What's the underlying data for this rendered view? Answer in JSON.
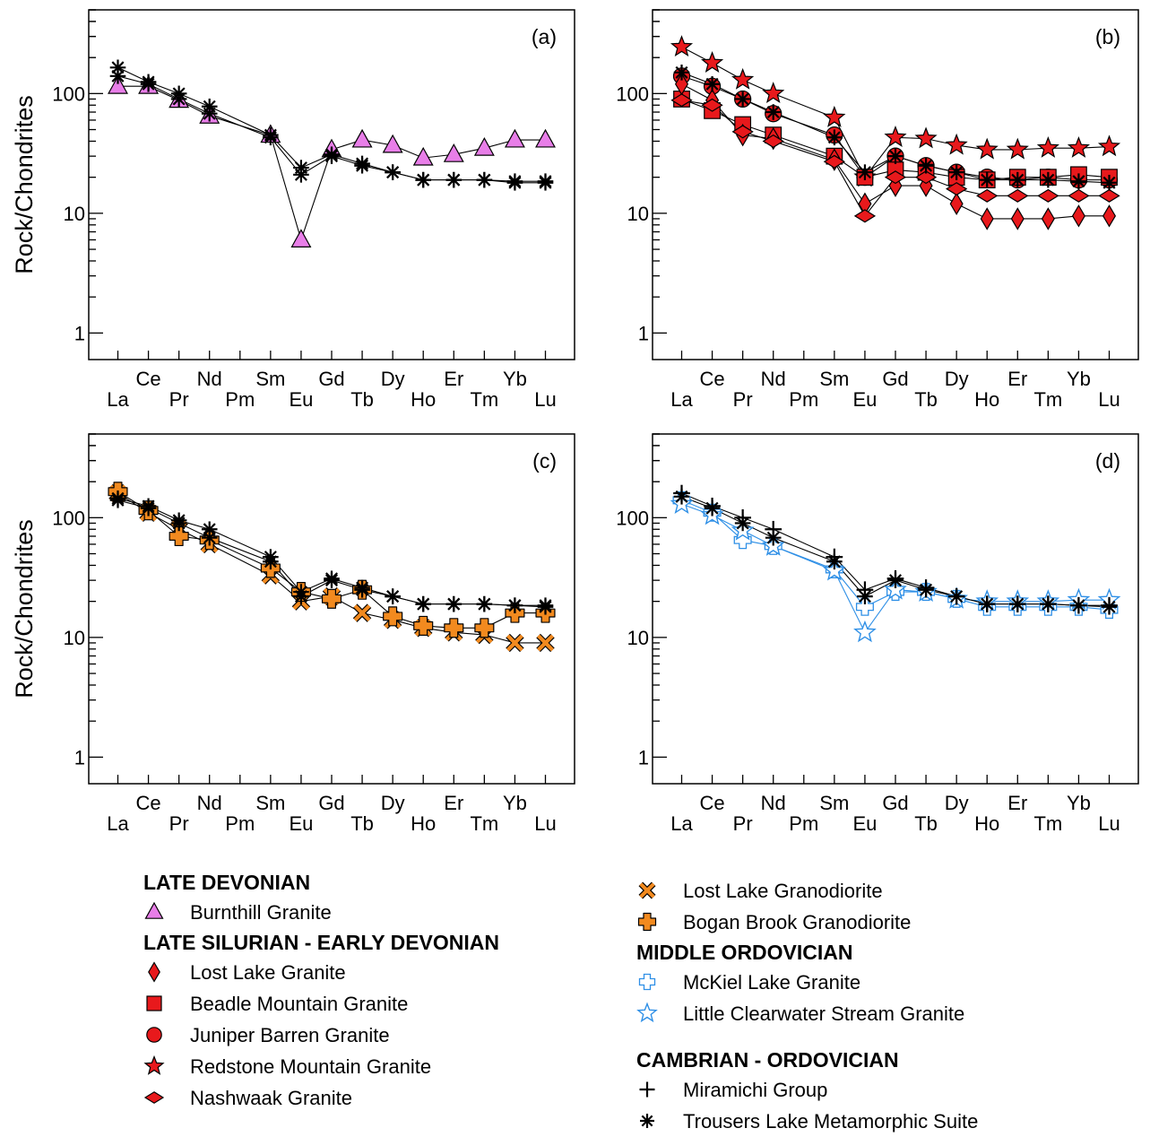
{
  "chart_data": [
    {
      "type": "line",
      "panel": "a",
      "annotation": "(a)",
      "ylabel": "Rock/Chondrites",
      "yscale": "log",
      "ylim": [
        0.6,
        500
      ],
      "yticks": [
        "1",
        "10",
        "100"
      ],
      "categories": [
        "La",
        "Ce",
        "Pr",
        "Nd",
        "Pm",
        "Sm",
        "Eu",
        "Gd",
        "Tb",
        "Dy",
        "Ho",
        "Er",
        "Tm",
        "Yb",
        "Lu"
      ],
      "series": [
        {
          "group": "burnthill",
          "values": [
            115,
            115,
            88,
            65,
            null,
            45,
            6,
            34,
            41,
            37,
            29,
            31,
            35,
            41,
            41
          ]
        },
        {
          "group": "trousers",
          "values": [
            140,
            120,
            90,
            68,
            null,
            43,
            21,
            30,
            25,
            22,
            19,
            19,
            19,
            18,
            18
          ]
        },
        {
          "group": "trousers",
          "values": [
            165,
            125,
            100,
            78,
            null,
            45,
            24,
            31,
            26,
            22,
            19,
            19,
            19,
            18.5,
            18.5
          ]
        }
      ]
    },
    {
      "type": "line",
      "panel": "b",
      "annotation": "(b)",
      "ylabel": "",
      "yscale": "log",
      "ylim": [
        0.6,
        500
      ],
      "yticks": [
        "1",
        "10",
        "100"
      ],
      "categories": [
        "La",
        "Ce",
        "Pr",
        "Nd",
        "Pm",
        "Sm",
        "Eu",
        "Gd",
        "Tb",
        "Dy",
        "Ho",
        "Er",
        "Tm",
        "Yb",
        "Lu"
      ],
      "series": [
        {
          "group": "redstone",
          "values": [
            245,
            180,
            130,
            100,
            null,
            63,
            20,
            43,
            42,
            37,
            34,
            34,
            35,
            35,
            36
          ]
        },
        {
          "group": "juniper",
          "values": [
            140,
            115,
            90,
            68,
            null,
            45,
            20,
            30,
            25,
            22,
            20,
            19,
            20,
            19,
            19
          ]
        },
        {
          "group": "beadle",
          "values": [
            90,
            72,
            55,
            45,
            null,
            30,
            20,
            23,
            22,
            20,
            19,
            20,
            20,
            21,
            20
          ]
        },
        {
          "group": "lostlake_granite",
          "values": [
            120,
            88,
            45,
            42,
            null,
            28,
            12,
            17,
            17,
            12,
            9,
            9,
            9,
            9.5,
            9.5
          ]
        },
        {
          "group": "nashwaak",
          "values": [
            88,
            80,
            48,
            40,
            null,
            27,
            9.5,
            20,
            20,
            16,
            14,
            14,
            14,
            14,
            14
          ]
        },
        {
          "group": "trousers",
          "values": [
            150,
            120,
            90,
            70,
            null,
            43,
            22,
            30,
            25,
            22,
            19,
            19,
            19,
            18.5,
            18
          ]
        }
      ]
    },
    {
      "type": "line",
      "panel": "c",
      "annotation": "(c)",
      "ylabel": "Rock/Chondrites",
      "yscale": "log",
      "ylim": [
        0.6,
        500
      ],
      "yticks": [
        "1",
        "10",
        "100"
      ],
      "categories": [
        "La",
        "Ce",
        "Pr",
        "Nd",
        "Pm",
        "Sm",
        "Eu",
        "Gd",
        "Tb",
        "Dy",
        "Ho",
        "Er",
        "Tm",
        "Yb",
        "Lu"
      ],
      "series": [
        {
          "group": "lostlake_granodiorite",
          "values": [
            160,
            110,
            80,
            60,
            null,
            33,
            20,
            22,
            16,
            14,
            12,
            11,
            10.5,
            9,
            9
          ]
        },
        {
          "group": "bogan",
          "values": [
            165,
            115,
            70,
            65,
            null,
            38,
            24,
            21,
            25,
            15,
            12.5,
            12,
            12,
            16,
            16
          ]
        },
        {
          "group": "trousers",
          "values": [
            140,
            120,
            90,
            68,
            null,
            43,
            22,
            30,
            25,
            22,
            19,
            19,
            19,
            18.5,
            18
          ]
        },
        {
          "group": "trousers",
          "values": [
            145,
            125,
            95,
            80,
            null,
            47,
            24,
            31,
            26,
            22,
            19,
            19,
            19,
            18.5,
            18.5
          ]
        }
      ]
    },
    {
      "type": "line",
      "panel": "d",
      "annotation": "(d)",
      "ylabel": "",
      "yscale": "log",
      "ylim": [
        0.6,
        500
      ],
      "yticks": [
        "1",
        "10",
        "100"
      ],
      "categories": [
        "La",
        "Ce",
        "Pr",
        "Nd",
        "Pm",
        "Sm",
        "Eu",
        "Gd",
        "Tb",
        "Dy",
        "Ho",
        "Er",
        "Tm",
        "Yb",
        "Lu"
      ],
      "series": [
        {
          "group": "mckiel",
          "values": [
            140,
            110,
            65,
            58,
            null,
            37,
            18,
            24,
            24,
            21,
            18,
            18,
            18,
            18,
            17
          ]
        },
        {
          "group": "littleclearwater",
          "values": [
            130,
            105,
            78,
            58,
            null,
            36,
            11,
            25,
            24,
            21,
            20,
            20,
            20,
            20.5,
            20.5
          ]
        },
        {
          "group": "miramichi",
          "values": [
            160,
            125,
            100,
            80,
            null,
            47,
            25,
            31,
            26,
            22,
            19,
            19,
            19,
            18.5,
            18.5
          ]
        },
        {
          "group": "trousers",
          "values": [
            150,
            120,
            90,
            68,
            null,
            43,
            22,
            30,
            25,
            22,
            19,
            19,
            19,
            18.5,
            18
          ]
        }
      ]
    }
  ],
  "styles": {
    "burnthill": {
      "marker": "triangle",
      "fill": "#e87ee8",
      "stroke": "#000000",
      "line": "#000000"
    },
    "lostlake_granite": {
      "marker": "diamond",
      "fill": "#e8191c",
      "stroke": "#000000",
      "line": "#000000"
    },
    "beadle": {
      "marker": "square",
      "fill": "#e8191c",
      "stroke": "#000000",
      "line": "#000000"
    },
    "juniper": {
      "marker": "circle",
      "fill": "#e8191c",
      "stroke": "#000000",
      "line": "#000000"
    },
    "redstone": {
      "marker": "star",
      "fill": "#e8191c",
      "stroke": "#000000",
      "line": "#000000"
    },
    "nashwaak": {
      "marker": "hdiamond",
      "fill": "#e8191c",
      "stroke": "#000000",
      "line": "#000000"
    },
    "lostlake_granodiorite": {
      "marker": "x",
      "fill": "#f28a1f",
      "stroke": "#000000",
      "line": "#000000"
    },
    "bogan": {
      "marker": "roundcross",
      "fill": "#f28a1f",
      "stroke": "#000000",
      "line": "#000000"
    },
    "mckiel": {
      "marker": "cross-open",
      "fill": "none",
      "stroke": "#2e8fe6",
      "line": "#2e8fe6"
    },
    "littleclearwater": {
      "marker": "star-open",
      "fill": "none",
      "stroke": "#2e8fe6",
      "line": "#2e8fe6"
    },
    "miramichi": {
      "marker": "plus",
      "fill": "none",
      "stroke": "#000000",
      "line": "#000000"
    },
    "trousers": {
      "marker": "asterisk",
      "fill": "none",
      "stroke": "#000000",
      "line": "#000000"
    }
  },
  "legend": {
    "left": [
      {
        "kind": "header",
        "text": "LATE DEVONIAN"
      },
      {
        "kind": "item",
        "group": "burnthill",
        "text": "Burnthill Granite"
      },
      {
        "kind": "header",
        "text": "LATE SILURIAN - EARLY DEVONIAN"
      },
      {
        "kind": "item",
        "group": "lostlake_granite",
        "text": "Lost Lake Granite"
      },
      {
        "kind": "item",
        "group": "beadle",
        "text": "Beadle Mountain Granite"
      },
      {
        "kind": "item",
        "group": "juniper",
        "text": "Juniper Barren Granite"
      },
      {
        "kind": "item",
        "group": "redstone",
        "text": "Redstone Mountain Granite"
      },
      {
        "kind": "item",
        "group": "nashwaak",
        "text": "Nashwaak Granite"
      }
    ],
    "right": [
      {
        "kind": "item",
        "group": "lostlake_granodiorite",
        "text": "Lost Lake Granodiorite"
      },
      {
        "kind": "item",
        "group": "bogan",
        "text": "Bogan Brook Granodiorite"
      },
      {
        "kind": "header",
        "text": "MIDDLE ORDOVICIAN"
      },
      {
        "kind": "item",
        "group": "mckiel",
        "text": "McKiel Lake Granite"
      },
      {
        "kind": "item",
        "group": "littleclearwater",
        "text": "Little Clearwater Stream Granite"
      },
      {
        "kind": "gap"
      },
      {
        "kind": "header",
        "text": "CAMBRIAN - ORDOVICIAN"
      },
      {
        "kind": "item",
        "group": "miramichi",
        "text": "Miramichi Group"
      },
      {
        "kind": "item",
        "group": "trousers",
        "text": "Trousers Lake Metamorphic Suite"
      }
    ]
  }
}
